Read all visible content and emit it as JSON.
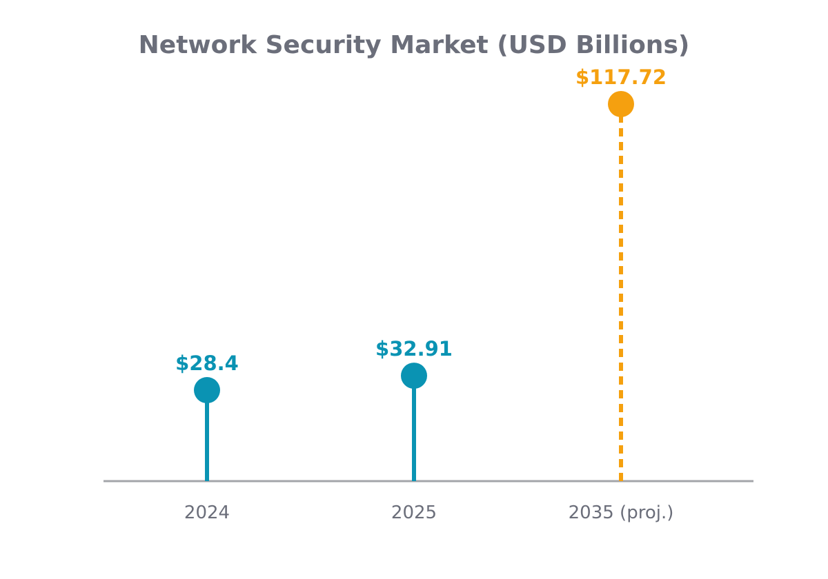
{
  "chart_data": {
    "type": "lollipop",
    "title": "Network Security Market (USD Billions)",
    "xlabel": "",
    "ylabel": "",
    "categories": [
      "2024",
      "2025",
      "2035 (proj.)"
    ],
    "values": [
      28.4,
      32.91,
      117.72
    ],
    "value_labels": [
      "$28.4",
      "$32.91",
      "$117.72"
    ],
    "projected": [
      false,
      false,
      true
    ],
    "ylim": [
      0,
      136
    ],
    "grid": false,
    "colors": {
      "actual": "#0a93b3",
      "projected": "#f5a00f",
      "title": "#6b6e7a",
      "tick": "#6b6e7a",
      "axis": "#a3a5a9"
    }
  }
}
